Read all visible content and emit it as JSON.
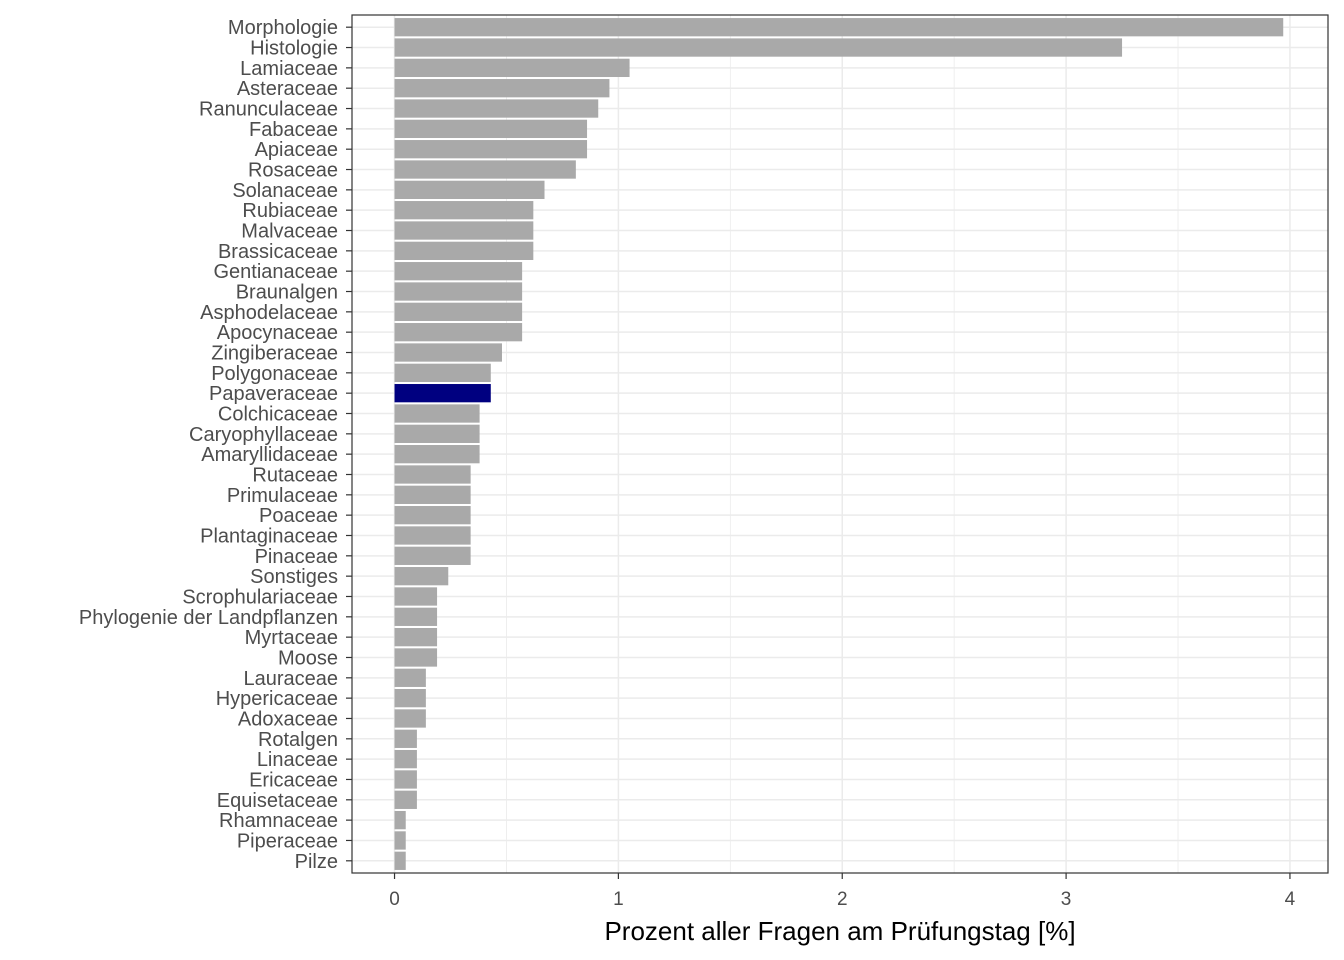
{
  "chart_data": {
    "type": "bar",
    "orientation": "horizontal",
    "xlabel": "Prozent aller Fragen am Prüfungstag [%]",
    "ylabel": "",
    "xlim": [
      -0.19,
      4.17
    ],
    "xticks": [
      0,
      1,
      2,
      3,
      4
    ],
    "grid": true,
    "colors": {
      "default": "#a9a9a9",
      "highlight": "#000080",
      "grid": "#ebebeb",
      "panel_border": "#333333"
    },
    "highlight_category": "Papaveraceae",
    "categories": [
      "Morphologie",
      "Histologie",
      "Lamiaceae",
      "Asteraceae",
      "Ranunculaceae",
      "Fabaceae",
      "Apiaceae",
      "Rosaceae",
      "Solanaceae",
      "Rubiaceae",
      "Malvaceae",
      "Brassicaceae",
      "Gentianaceae",
      "Braunalgen",
      "Asphodelaceae",
      "Apocynaceae",
      "Zingiberaceae",
      "Polygonaceae",
      "Papaveraceae",
      "Colchicaceae",
      "Caryophyllaceae",
      "Amaryllidaceae",
      "Rutaceae",
      "Primulaceae",
      "Poaceae",
      "Plantaginaceae",
      "Pinaceae",
      "Sonstiges",
      "Scrophulariaceae",
      "Phylogenie der Landpflanzen",
      "Myrtaceae",
      "Moose",
      "Lauraceae",
      "Hypericaceae",
      "Adoxaceae",
      "Rotalgen",
      "Linaceae",
      "Ericaceae",
      "Equisetaceae",
      "Rhamnaceae",
      "Piperaceae",
      "Pilze"
    ],
    "values": [
      3.97,
      3.25,
      1.05,
      0.96,
      0.91,
      0.86,
      0.86,
      0.81,
      0.67,
      0.62,
      0.62,
      0.62,
      0.57,
      0.57,
      0.57,
      0.57,
      0.48,
      0.43,
      0.43,
      0.38,
      0.38,
      0.38,
      0.34,
      0.34,
      0.34,
      0.34,
      0.34,
      0.24,
      0.19,
      0.19,
      0.19,
      0.19,
      0.14,
      0.14,
      0.14,
      0.1,
      0.1,
      0.1,
      0.1,
      0.05,
      0.05,
      0.05
    ]
  }
}
